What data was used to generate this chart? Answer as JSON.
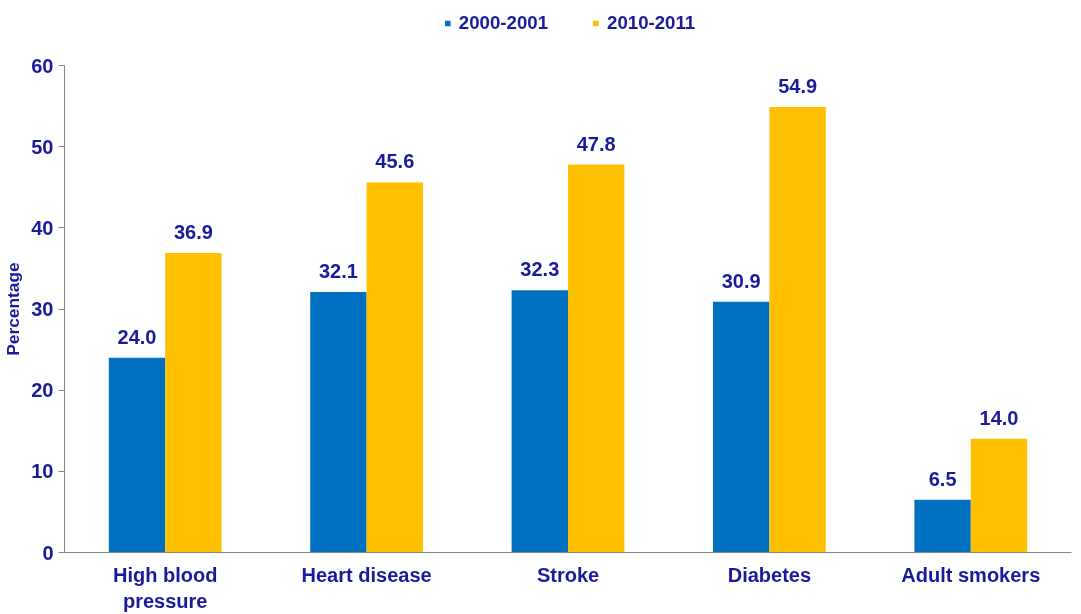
{
  "chart_data": {
    "type": "bar",
    "ylabel": "Percentage",
    "categories": [
      "High blood\npressure",
      "Heart disease",
      "Stroke",
      "Diabetes",
      "Adult smokers"
    ],
    "series": [
      {
        "name": "2000-2001",
        "color": "#0070c0",
        "values": [
          24.0,
          32.1,
          32.3,
          30.9,
          6.5
        ],
        "value_labels": [
          "24.0",
          "32.1",
          "32.3",
          "30.9",
          "6.5"
        ]
      },
      {
        "name": "2010-2011",
        "color": "#ffc000",
        "values": [
          36.9,
          45.6,
          47.8,
          54.9,
          14.0
        ],
        "value_labels": [
          "36.9",
          "45.6",
          "47.8",
          "54.9",
          "14.0"
        ]
      }
    ],
    "ylim": [
      0,
      60
    ],
    "yticks": [
      0,
      10,
      20,
      30,
      40,
      50,
      60
    ],
    "grid": false,
    "legend": "top"
  }
}
